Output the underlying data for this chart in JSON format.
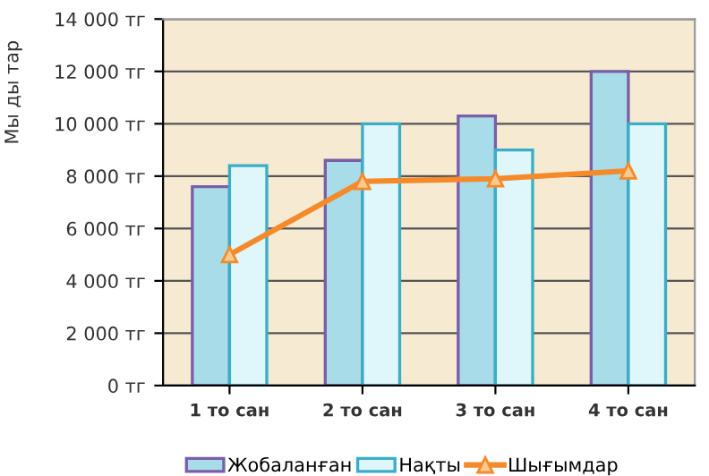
{
  "chart_data": {
    "type": "bar",
    "ylabel": "Мы ды тар",
    "categories": [
      "1 то сан",
      "2 то сан",
      "3 то сан",
      "4 то сан"
    ],
    "series": [
      {
        "name": "Жобаланған",
        "color": "#a8dce8",
        "values": [
          7600,
          8600,
          10300,
          12000
        ]
      },
      {
        "name": "Нақты",
        "color": "#dff6fb",
        "values": [
          8400,
          10000,
          9000,
          10000
        ]
      },
      {
        "name": "Шығымдар",
        "type": "line",
        "color": "#f58a2a",
        "marker": "triangle",
        "values": [
          5000,
          7800,
          7900,
          8200
        ]
      }
    ],
    "ylim": [
      0,
      14000
    ],
    "yticks": [
      {
        "value": 0,
        "label": "0 тг"
      },
      {
        "value": 2000,
        "label": "2 000 тг"
      },
      {
        "value": 4000,
        "label": "4 000 тг"
      },
      {
        "value": 6000,
        "label": "6 000 тг"
      },
      {
        "value": 8000,
        "label": "8 000 тг"
      },
      {
        "value": 10000,
        "label": "10 000 тг"
      },
      {
        "value": 12000,
        "label": "12 000 тг"
      },
      {
        "value": 14000,
        "label": "14 000 тг"
      }
    ],
    "grid": "y",
    "legend": "bottom"
  }
}
